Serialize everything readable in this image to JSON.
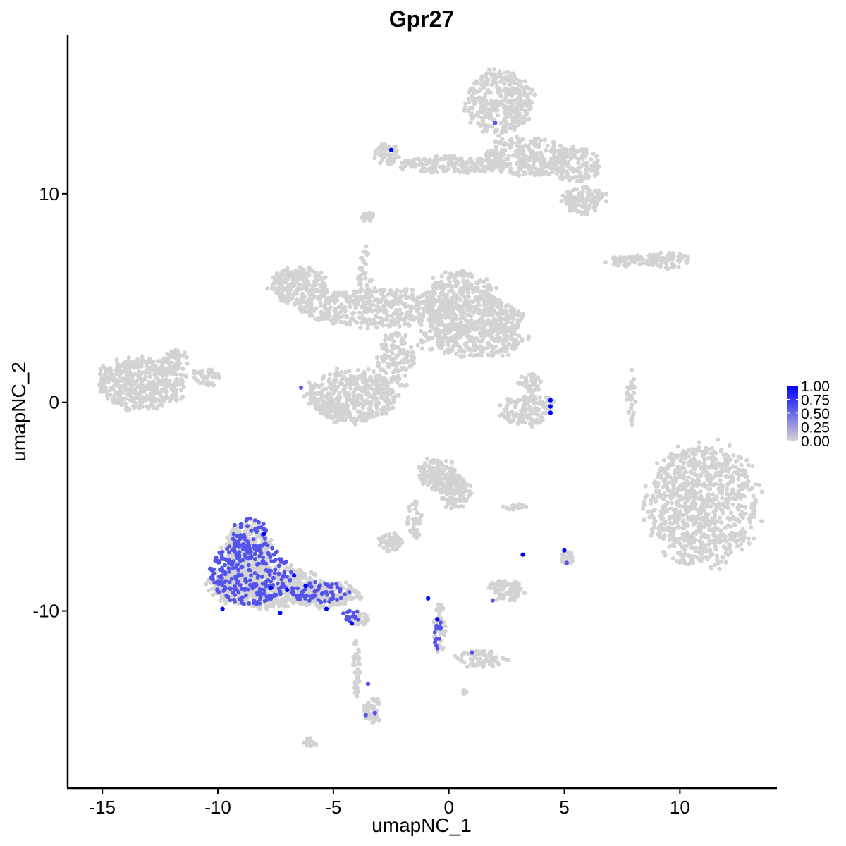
{
  "chart_data": {
    "type": "scatter",
    "title": "Gpr27",
    "xlabel": "umapNC_1",
    "ylabel": "umapNC_2",
    "xlim": [
      -16.5,
      14.2
    ],
    "ylim": [
      -18.5,
      17.6
    ],
    "x_ticks": [
      -15,
      -10,
      -5,
      0,
      5,
      10
    ],
    "y_ticks": [
      -10,
      0,
      10
    ],
    "x_tick_labels": [
      "-15",
      "-10",
      "-5",
      "0",
      "5",
      "10"
    ],
    "y_tick_labels": [
      "-10",
      "0",
      "10"
    ],
    "grid": false,
    "legend": {
      "position": "right",
      "type": "colorbar",
      "min": 0,
      "max": 1,
      "breaks": [
        1.0,
        0.75,
        0.5,
        0.25,
        0.0
      ],
      "labels": [
        "1.00",
        "0.75",
        "0.50",
        "0.25",
        "0.00"
      ]
    },
    "color_low": "#d3d3d3",
    "color_high": "#0000ff",
    "background_clusters": [
      {
        "cx": 2.2,
        "cy": 14.4,
        "rx": 1.4,
        "ry": 1.5,
        "n": 260
      },
      {
        "cx": 3.4,
        "cy": 11.8,
        "rx": 1.8,
        "ry": 0.9,
        "n": 200
      },
      {
        "cx": 5.5,
        "cy": 11.4,
        "rx": 1.0,
        "ry": 0.8,
        "n": 110
      },
      {
        "cx": 5.9,
        "cy": 9.7,
        "rx": 0.9,
        "ry": 0.6,
        "n": 90
      },
      {
        "cx": 0.0,
        "cy": 11.4,
        "rx": 2.2,
        "ry": 0.4,
        "n": 130
      },
      {
        "cx": -2.7,
        "cy": 11.9,
        "rx": 0.5,
        "ry": 0.5,
        "n": 40
      },
      {
        "cx": -3.5,
        "cy": 8.9,
        "rx": 0.3,
        "ry": 0.2,
        "n": 14
      },
      {
        "cx": -6.5,
        "cy": 5.6,
        "rx": 1.2,
        "ry": 0.8,
        "n": 160
      },
      {
        "cx": -3.0,
        "cy": 4.5,
        "rx": 3.5,
        "ry": 0.9,
        "n": 330
      },
      {
        "cx": 0.5,
        "cy": 4.8,
        "rx": 1.5,
        "ry": 1.5,
        "n": 260
      },
      {
        "cx": 2.2,
        "cy": 4.0,
        "rx": 0.9,
        "ry": 0.8,
        "n": 100
      },
      {
        "cx": 1.0,
        "cy": 3.0,
        "rx": 2.2,
        "ry": 0.8,
        "n": 190
      },
      {
        "cx": -3.6,
        "cy": 5.8,
        "rx": 0.3,
        "ry": 1.5,
        "n": 40
      },
      {
        "cx": -4.2,
        "cy": 0.3,
        "rx": 1.9,
        "ry": 1.2,
        "n": 330
      },
      {
        "cx": -2.3,
        "cy": 2.0,
        "rx": 0.8,
        "ry": 1.2,
        "n": 90
      },
      {
        "cx": -13.3,
        "cy": 0.9,
        "rx": 1.8,
        "ry": 1.2,
        "n": 330
      },
      {
        "cx": -11.8,
        "cy": 1.9,
        "rx": 0.6,
        "ry": 0.6,
        "n": 40
      },
      {
        "cx": -10.5,
        "cy": 1.2,
        "rx": 0.6,
        "ry": 0.4,
        "n": 30
      },
      {
        "cx": 3.3,
        "cy": -0.4,
        "rx": 1.0,
        "ry": 0.7,
        "n": 90
      },
      {
        "cx": 3.5,
        "cy": 0.9,
        "rx": 0.5,
        "ry": 0.5,
        "n": 30
      },
      {
        "cx": 4.3,
        "cy": 0.0,
        "rx": 0.2,
        "ry": 0.3,
        "n": 14
      },
      {
        "cx": 7.9,
        "cy": 6.8,
        "rx": 1.2,
        "ry": 0.3,
        "n": 50
      },
      {
        "cx": 9.5,
        "cy": 6.8,
        "rx": 0.9,
        "ry": 0.4,
        "n": 50
      },
      {
        "cx": 7.9,
        "cy": 0.2,
        "rx": 0.2,
        "ry": 1.2,
        "n": 24
      },
      {
        "cx": 11.0,
        "cy": -4.9,
        "rx": 2.3,
        "ry": 2.8,
        "n": 650
      },
      {
        "cx": -0.5,
        "cy": -3.5,
        "rx": 0.8,
        "ry": 0.8,
        "n": 120
      },
      {
        "cx": 0.3,
        "cy": -4.3,
        "rx": 0.6,
        "ry": 0.8,
        "n": 70
      },
      {
        "cx": -1.5,
        "cy": -5.6,
        "rx": 0.3,
        "ry": 1.0,
        "n": 30
      },
      {
        "cx": -2.5,
        "cy": -6.7,
        "rx": 0.5,
        "ry": 0.4,
        "n": 40
      },
      {
        "cx": 2.8,
        "cy": -5.0,
        "rx": 0.5,
        "ry": 0.15,
        "n": 14
      },
      {
        "cx": 2.5,
        "cy": -9.0,
        "rx": 0.7,
        "ry": 0.5,
        "n": 60
      },
      {
        "cx": 5.1,
        "cy": -7.4,
        "rx": 0.25,
        "ry": 0.35,
        "n": 20
      },
      {
        "cx": -8.0,
        "cy": -8.8,
        "rx": 2.2,
        "ry": 1.0,
        "n": 420
      },
      {
        "cx": -8.7,
        "cy": -7.0,
        "rx": 1.0,
        "ry": 1.2,
        "n": 200
      },
      {
        "cx": -5.5,
        "cy": -9.2,
        "rx": 1.6,
        "ry": 0.6,
        "n": 160
      },
      {
        "cx": -3.9,
        "cy": -10.4,
        "rx": 0.4,
        "ry": 0.3,
        "n": 30
      },
      {
        "cx": -4.0,
        "cy": -12.7,
        "rx": 0.15,
        "ry": 1.3,
        "n": 30
      },
      {
        "cx": -3.3,
        "cy": -14.8,
        "rx": 0.35,
        "ry": 0.6,
        "n": 40
      },
      {
        "cx": -0.4,
        "cy": -10.8,
        "rx": 0.25,
        "ry": 1.2,
        "n": 40
      },
      {
        "cx": 1.4,
        "cy": -12.3,
        "rx": 1.2,
        "ry": 0.4,
        "n": 60
      },
      {
        "cx": -6.0,
        "cy": -16.3,
        "rx": 0.3,
        "ry": 0.2,
        "n": 12
      },
      {
        "cx": 0.7,
        "cy": -13.9,
        "rx": 0.1,
        "ry": 0.1,
        "n": 4
      }
    ],
    "expressing_cells": [
      {
        "x": 2.0,
        "y": 13.4,
        "value": 0.6
      },
      {
        "x": -2.5,
        "y": 12.1,
        "value": 1.0
      },
      {
        "x": -6.4,
        "y": 0.7,
        "value": 0.55
      },
      {
        "x": 4.4,
        "y": 0.1,
        "value": 1.0
      },
      {
        "x": 4.4,
        "y": -0.2,
        "value": 1.0
      },
      {
        "x": 4.4,
        "y": -0.5,
        "value": 1.0
      },
      {
        "x": 3.2,
        "y": -7.3,
        "value": 1.0
      },
      {
        "x": 5.0,
        "y": -7.1,
        "value": 1.0
      },
      {
        "x": 5.1,
        "y": -7.7,
        "value": 0.6
      },
      {
        "x": -8.0,
        "y": -6.3,
        "value": 1.0
      },
      {
        "x": -7.7,
        "y": -8.9,
        "value": 1.0
      },
      {
        "x": -7.0,
        "y": -9.0,
        "value": 1.0
      },
      {
        "x": -6.7,
        "y": -8.3,
        "value": 1.0
      },
      {
        "x": -6.2,
        "y": -8.8,
        "value": 1.0
      },
      {
        "x": -5.3,
        "y": -9.9,
        "value": 1.0
      },
      {
        "x": -4.2,
        "y": -10.6,
        "value": 1.0
      },
      {
        "x": -7.3,
        "y": -10.1,
        "value": 1.0
      },
      {
        "x": -9.8,
        "y": -9.9,
        "value": 1.0
      },
      {
        "x": -0.9,
        "y": -9.4,
        "value": 1.0
      },
      {
        "x": -0.5,
        "y": -10.4,
        "value": 1.0
      },
      {
        "x": -0.6,
        "y": -11.5,
        "value": 0.6
      },
      {
        "x": 1.0,
        "y": -12.0,
        "value": 0.6
      },
      {
        "x": 1.9,
        "y": -9.5,
        "value": 0.6
      },
      {
        "x": -3.5,
        "y": -13.5,
        "value": 0.6
      },
      {
        "x": -3.6,
        "y": -15.0,
        "value": 0.6
      },
      {
        "x": -3.2,
        "y": -14.9,
        "value": 0.6
      }
    ],
    "expressing_clouds": [
      {
        "cx": -8.6,
        "cy": -8.2,
        "rx": 1.8,
        "ry": 1.5,
        "n": 260,
        "value": 0.6
      },
      {
        "cx": -8.6,
        "cy": -6.3,
        "rx": 0.8,
        "ry": 0.9,
        "n": 60,
        "value": 0.6
      },
      {
        "cx": -5.6,
        "cy": -9.1,
        "rx": 1.3,
        "ry": 0.5,
        "n": 70,
        "value": 0.6
      },
      {
        "cx": -4.2,
        "cy": -10.2,
        "rx": 0.4,
        "ry": 0.3,
        "n": 16,
        "value": 0.6
      },
      {
        "cx": -0.5,
        "cy": -11.0,
        "rx": 0.2,
        "ry": 0.9,
        "n": 12,
        "value": 0.6
      }
    ]
  }
}
